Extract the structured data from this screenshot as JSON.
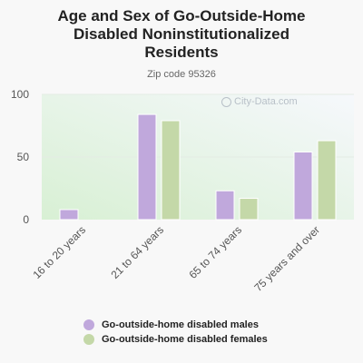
{
  "chart_data": {
    "type": "bar",
    "title": "Age and Sex of Go-Outside-Home Disabled Noninstitutionalized Residents",
    "subtitle": "Zip code 95326",
    "categories": [
      "16 to 20 years",
      "21 to 64 years",
      "65 to 74 years",
      "75 years and over"
    ],
    "series": [
      {
        "name": "Go-outside-home disabled males",
        "values": [
          8,
          84,
          23,
          54
        ],
        "color": "#c0a8dc"
      },
      {
        "name": "Go-outside-home disabled females",
        "values": [
          0,
          79,
          17,
          63
        ],
        "color": "#c4d8a8"
      }
    ],
    "ylim": [
      0,
      100
    ],
    "yticks": [
      0,
      50,
      100
    ],
    "grid": true,
    "legend_position": "bottom",
    "xlabel": "",
    "ylabel": ""
  },
  "watermark": "City-Data.com",
  "title_lines": [
    "Age and Sex of Go-Outside-Home",
    "Disabled Noninstitutionalized",
    "Residents"
  ]
}
